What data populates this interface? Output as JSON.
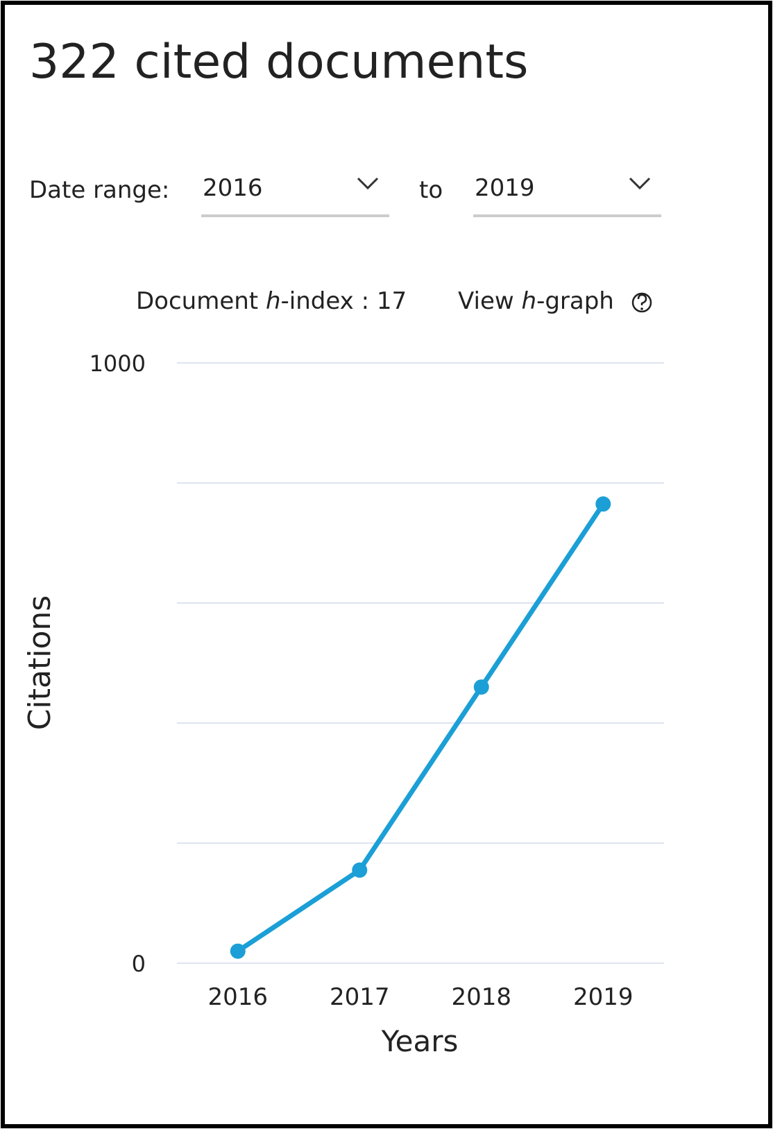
{
  "header": {
    "title": "322 cited documents"
  },
  "date_range": {
    "label": "Date range:",
    "from": "2016",
    "separator": "to",
    "to": "2019"
  },
  "h_index": {
    "label_start": "Document ",
    "label_italic": "h",
    "label_end": "-index : ",
    "value": 17
  },
  "h_graph": {
    "label_start": "View ",
    "label_italic": "h",
    "label_end": "-graph"
  },
  "chart_data": {
    "type": "line",
    "categories": [
      "2016",
      "2017",
      "2018",
      "2019"
    ],
    "series": [
      {
        "name": "Citations",
        "color": "#1b9fd6",
        "values": [
          20,
          155,
          460,
          765
        ]
      }
    ],
    "ylim": [
      0,
      1000
    ],
    "yticks": [
      0,
      1000
    ],
    "ygrid": [
      0,
      200,
      400,
      600,
      800,
      1000
    ],
    "grid": true,
    "ylabel": "Citations",
    "xlabel": "Years"
  }
}
